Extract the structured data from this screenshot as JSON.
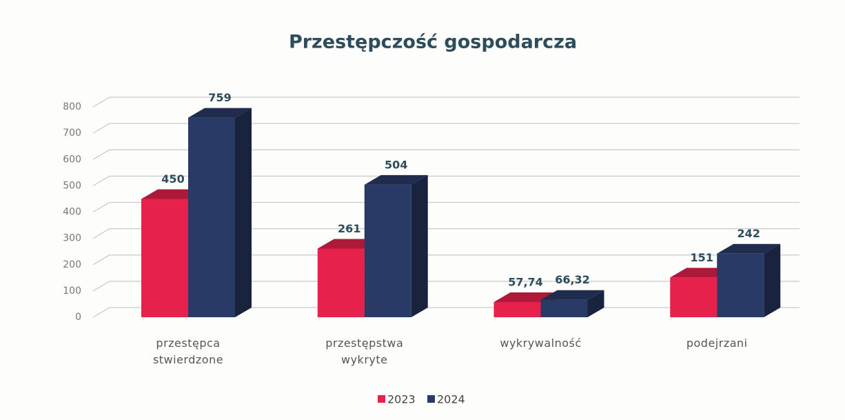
{
  "chart_data": {
    "type": "bar3d",
    "title": "Przestępczość gospodarcza",
    "categories": [
      "przestępca stwierdzone",
      "przestępstwa wykryte",
      "wykrywalność",
      "podejrzani"
    ],
    "series": [
      {
        "name": "2023",
        "color": "#e5214c",
        "values": [
          450,
          261,
          57.74,
          151
        ],
        "value_labels": [
          "450",
          "261",
          "57,74",
          "151"
        ]
      },
      {
        "name": "2024",
        "color": "#2a3a66",
        "values": [
          759,
          504,
          66.32,
          242
        ],
        "value_labels": [
          "759",
          "504",
          "66,32",
          "242"
        ]
      }
    ],
    "ylim": [
      0,
      800
    ],
    "yticks": [
      0,
      100,
      200,
      300,
      400,
      500,
      600,
      700,
      800
    ],
    "grid": true,
    "legend": "bottom"
  }
}
